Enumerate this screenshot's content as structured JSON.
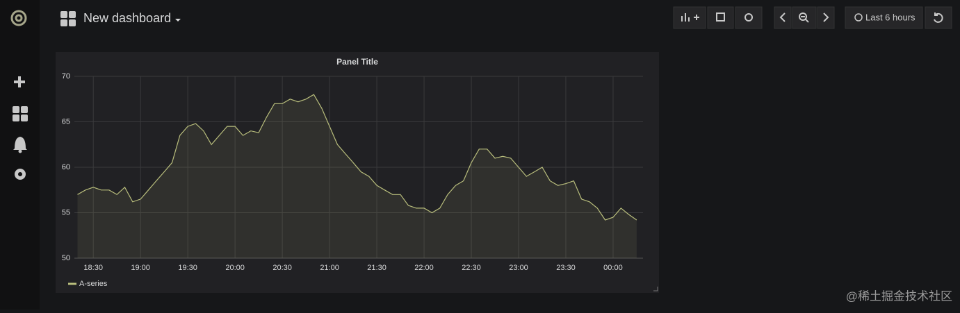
{
  "header": {
    "title": "New dashboard",
    "time_range": "Last 6 hours"
  },
  "watermark": "@稀土掘金技术社区",
  "chart_data": {
    "type": "line",
    "title": "Panel Title",
    "x": [
      "18:20",
      "18:25",
      "18:30",
      "18:35",
      "18:40",
      "18:45",
      "18:50",
      "18:55",
      "19:00",
      "19:05",
      "19:10",
      "19:15",
      "19:20",
      "19:25",
      "19:30",
      "19:35",
      "19:40",
      "19:45",
      "19:50",
      "19:55",
      "20:00",
      "20:05",
      "20:10",
      "20:15",
      "20:20",
      "20:25",
      "20:30",
      "20:35",
      "20:40",
      "20:45",
      "20:50",
      "20:55",
      "21:00",
      "21:05",
      "21:10",
      "21:15",
      "21:20",
      "21:25",
      "21:30",
      "21:35",
      "21:40",
      "21:45",
      "21:50",
      "21:55",
      "22:00",
      "22:05",
      "22:10",
      "22:15",
      "22:20",
      "22:25",
      "22:30",
      "22:35",
      "22:40",
      "22:45",
      "22:50",
      "22:55",
      "23:00",
      "23:05",
      "23:10",
      "23:15",
      "23:20",
      "23:25",
      "23:30",
      "23:35",
      "23:40",
      "23:45",
      "23:50",
      "23:55",
      "00:00",
      "00:05",
      "00:10",
      "00:15"
    ],
    "series": [
      {
        "name": "A-series",
        "color": "#b8bd7c",
        "values": [
          57,
          57.5,
          57.8,
          57.5,
          57.5,
          57,
          57.8,
          56.2,
          56.5,
          57.5,
          58.5,
          59.5,
          60.5,
          63.5,
          64.5,
          64.8,
          64,
          62.5,
          63.5,
          64.5,
          64.5,
          63.5,
          64,
          63.8,
          65.5,
          67,
          67,
          67.5,
          67.2,
          67.5,
          68,
          66.5,
          64.5,
          62.5,
          61.5,
          60.5,
          59.5,
          59,
          58,
          57.5,
          57,
          57,
          55.8,
          55.5,
          55.5,
          55,
          55.5,
          57,
          58,
          58.5,
          60.5,
          62,
          62,
          61,
          61.2,
          61,
          60,
          59,
          59.5,
          60,
          58.5,
          58,
          58.2,
          58.5,
          56.5,
          56.2,
          55.5,
          54.2,
          54.5,
          55.5,
          54.8,
          54.2
        ]
      }
    ],
    "xlim": [
      "18:18",
      "00:19"
    ],
    "xticks": [
      "18:30",
      "19:00",
      "19:30",
      "20:00",
      "20:30",
      "21:00",
      "21:30",
      "22:00",
      "22:30",
      "23:00",
      "23:30",
      "00:00"
    ],
    "ylim": [
      50,
      70
    ],
    "yticks": [
      50,
      55,
      60,
      65,
      70
    ],
    "grid": true,
    "legend": "bottom-left"
  }
}
